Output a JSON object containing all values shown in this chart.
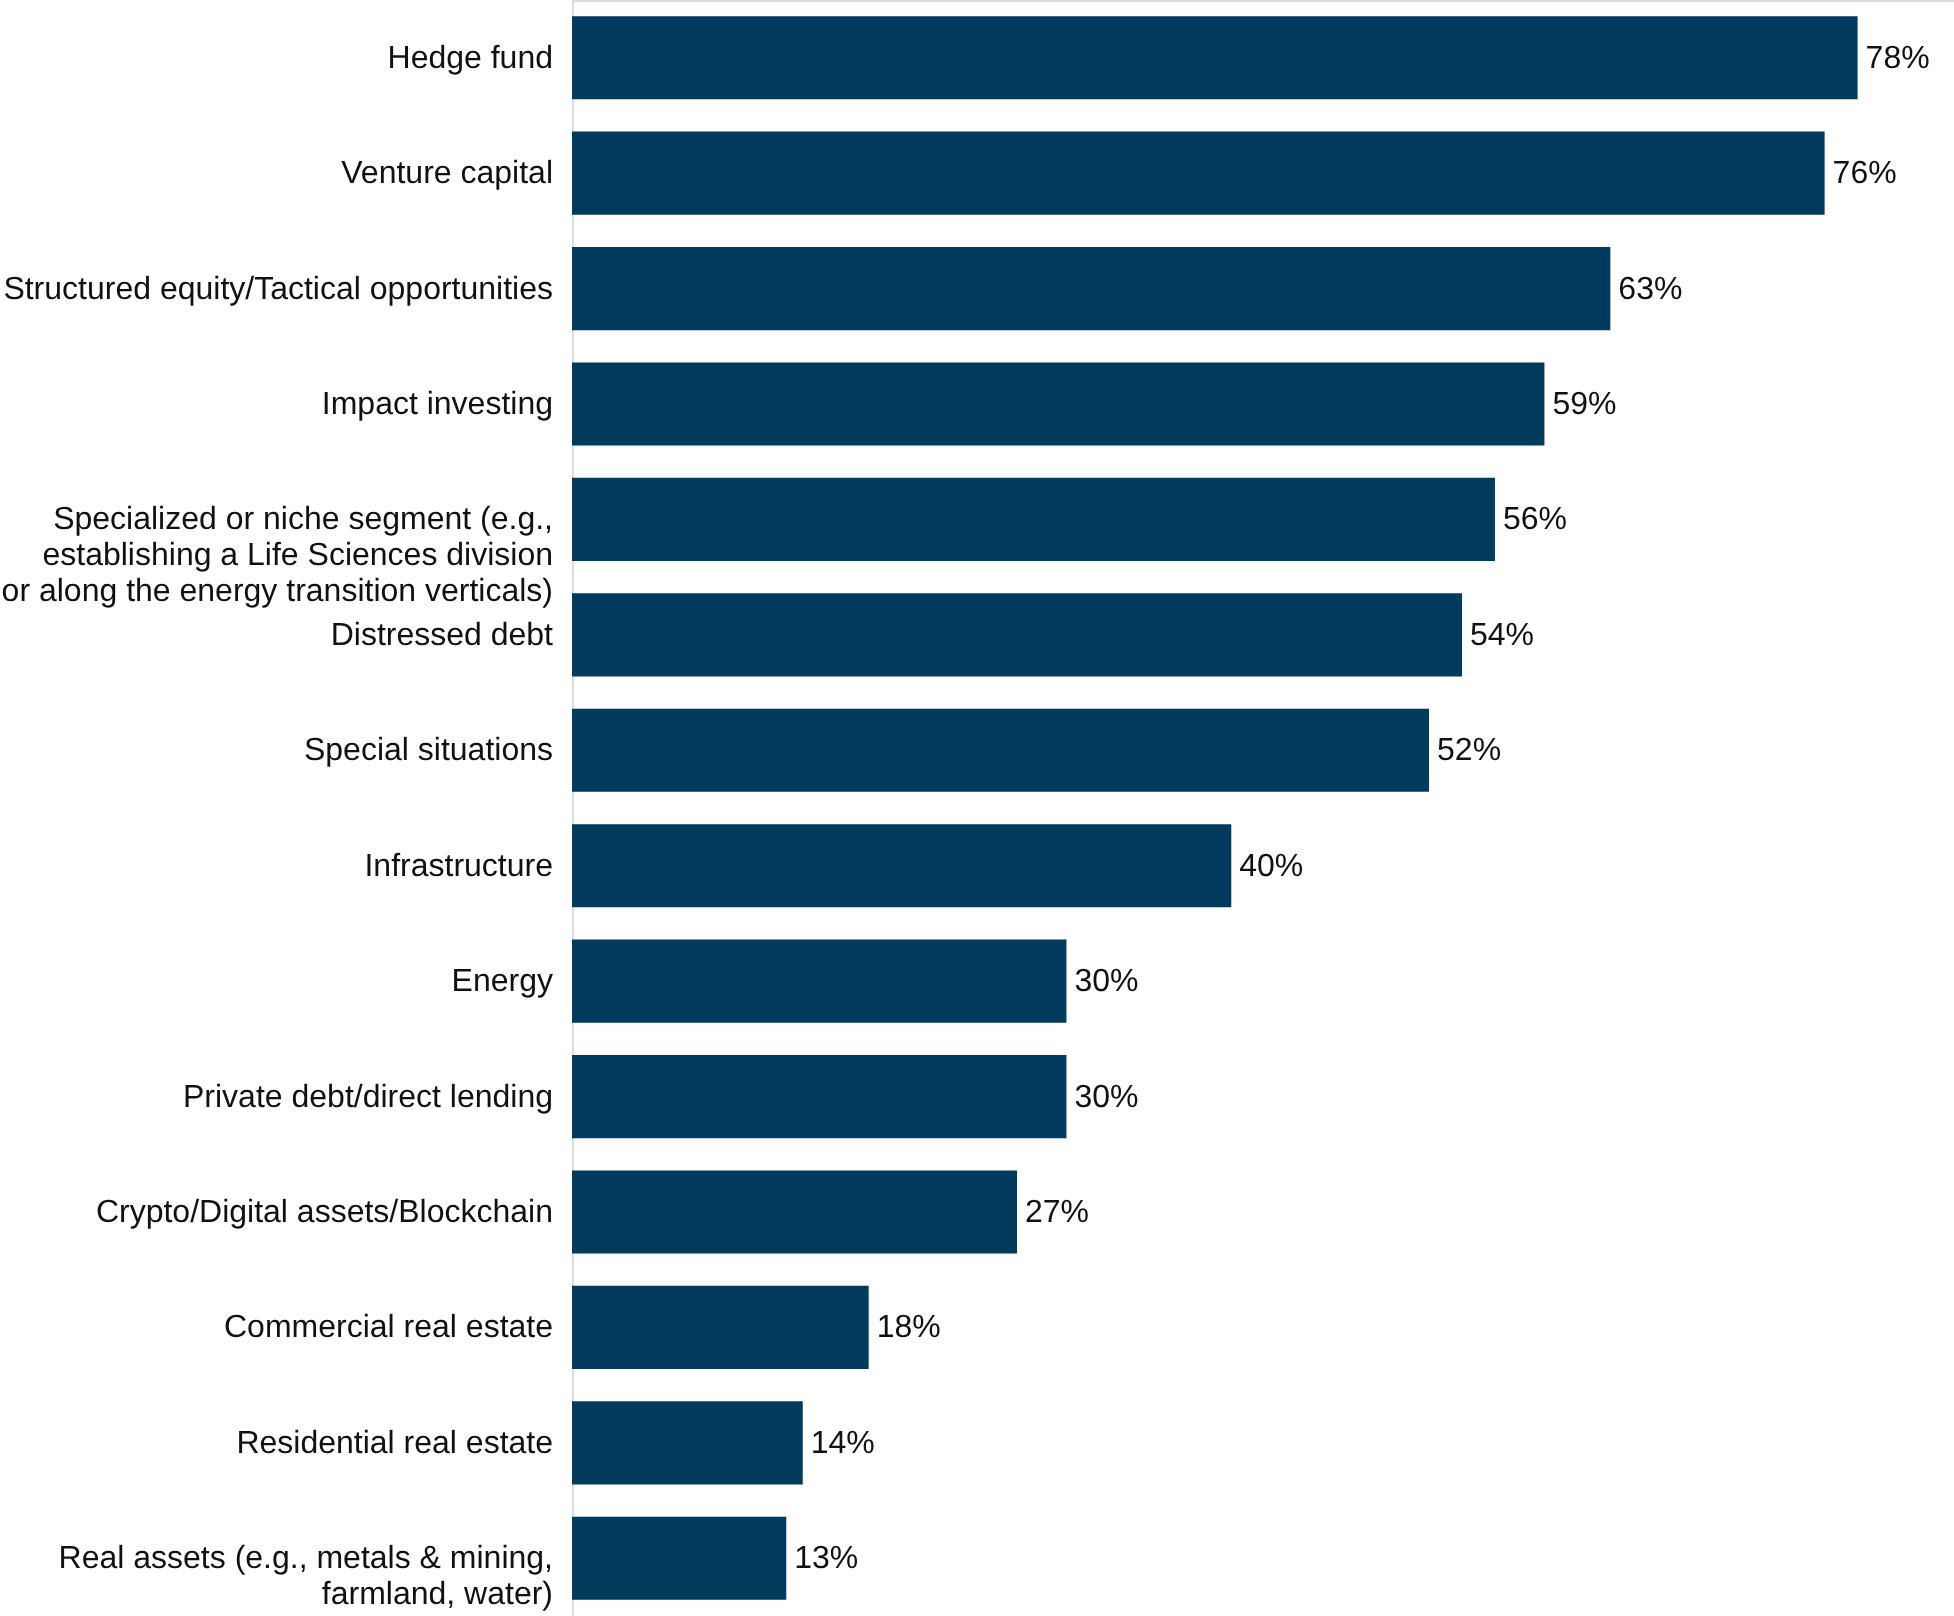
{
  "chart_data": {
    "type": "bar",
    "orientation": "horizontal",
    "categories": [
      "Hedge fund",
      "Venture capital",
      "Structured equity/Tactical opportunities",
      "Impact investing",
      "Specialized or niche segment (e.g.,\nestablishing a Life Sciences division\nor along the energy transition verticals)",
      "Distressed debt",
      "Special situations",
      "Infrastructure",
      "Energy",
      "Private debt/direct lending",
      "Crypto/Digital assets/Blockchain",
      "Commercial real estate",
      "Residential real estate",
      "Real assets (e.g., metals & mining,\nfarmland, water)"
    ],
    "values": [
      78,
      76,
      63,
      59,
      56,
      54,
      52,
      40,
      30,
      30,
      27,
      18,
      14,
      13
    ],
    "value_labels": [
      "78%",
      "76%",
      "63%",
      "59%",
      "56%",
      "54%",
      "52%",
      "40%",
      "30%",
      "30%",
      "27%",
      "18%",
      "14%",
      "13%"
    ],
    "color": "#003a5d"
  }
}
